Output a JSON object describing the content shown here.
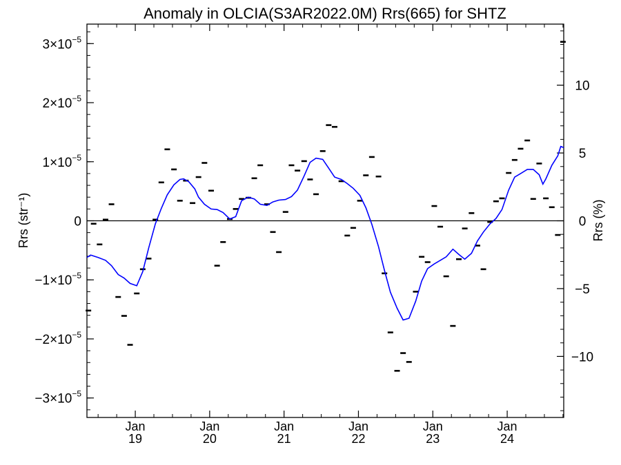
{
  "chart_data": {
    "type": "line",
    "title": "Anomaly in OLCIA(S3AR2022.0M) Rrs(665) for SHTZ",
    "ylabel_left": "Rrs (str⁻¹)",
    "ylabel_right": "Rrs (%)",
    "xlim": [
      2018.35,
      2024.76
    ],
    "ylim_left": [
      -3.33e-05,
      3.33e-05
    ],
    "ylim_right": [
      -14.5,
      14.5
    ],
    "left_ticks": [
      {
        "value": 3e-05,
        "mantissa": "3×10",
        "exp": "−5"
      },
      {
        "value": 2e-05,
        "mantissa": "2×10",
        "exp": "−5"
      },
      {
        "value": 1e-05,
        "mantissa": "1×10",
        "exp": "−5"
      },
      {
        "value": 0,
        "mantissa": "0",
        "exp": ""
      },
      {
        "value": -1e-05,
        "mantissa": "−1×10",
        "exp": "−5"
      },
      {
        "value": -2e-05,
        "mantissa": "−2×10",
        "exp": "−5"
      },
      {
        "value": -3e-05,
        "mantissa": "−3×10",
        "exp": "−5"
      }
    ],
    "right_ticks": [
      {
        "value": 10,
        "label": "10"
      },
      {
        "value": 5,
        "label": "5"
      },
      {
        "value": 0,
        "label": "0"
      },
      {
        "value": -5,
        "label": "−5"
      },
      {
        "value": -10,
        "label": "−10"
      }
    ],
    "x_ticks": [
      {
        "value": 2019.0,
        "month": "Jan",
        "year": "19"
      },
      {
        "value": 2020.0,
        "month": "Jan",
        "year": "20"
      },
      {
        "value": 2021.0,
        "month": "Jan",
        "year": "21"
      },
      {
        "value": 2022.0,
        "month": "Jan",
        "year": "22"
      },
      {
        "value": 2023.0,
        "month": "Jan",
        "year": "23"
      },
      {
        "value": 2024.0,
        "month": "Jan",
        "year": "24"
      }
    ],
    "reference_line": 0,
    "monthly_anomaly": [
      [
        2018.37,
        -1.52e-05
      ],
      [
        2018.44,
        -5e-07
      ],
      [
        2018.52,
        -4e-06
      ],
      [
        2018.6,
        2e-07
      ],
      [
        2018.68,
        2.8e-06
      ],
      [
        2018.77,
        -1.29e-05
      ],
      [
        2018.85,
        -1.61e-05
      ],
      [
        2018.93,
        -2.1e-05
      ],
      [
        2019.02,
        -1.23e-05
      ],
      [
        2019.1,
        -8.2e-06
      ],
      [
        2019.18,
        -6.4e-06
      ],
      [
        2019.27,
        2e-07
      ],
      [
        2019.35,
        6.5e-06
      ],
      [
        2019.43,
        1.21e-05
      ],
      [
        2019.52,
        8.7e-06
      ],
      [
        2019.6,
        3.4e-06
      ],
      [
        2019.68,
        6.8e-06
      ],
      [
        2019.77,
        3e-06
      ],
      [
        2019.85,
        7.4e-06
      ],
      [
        2019.93,
        9.8e-06
      ],
      [
        2020.02,
        5.1e-06
      ],
      [
        2020.1,
        -7.6e-06
      ],
      [
        2020.18,
        -3.6e-06
      ],
      [
        2020.27,
        3e-07
      ],
      [
        2020.35,
        2e-06
      ],
      [
        2020.43,
        3.7e-06
      ],
      [
        2020.52,
        3.9e-06
      ],
      [
        2020.6,
        7.2e-06
      ],
      [
        2020.68,
        9.4e-06
      ],
      [
        2020.77,
        2.8e-06
      ],
      [
        2020.85,
        -1.9e-06
      ],
      [
        2020.93,
        -5.3e-06
      ],
      [
        2021.02,
        1.5e-06
      ],
      [
        2021.1,
        9.4e-06
      ],
      [
        2021.18,
        8.5e-06
      ],
      [
        2021.27,
        1.01e-05
      ],
      [
        2021.35,
        7e-06
      ],
      [
        2021.43,
        4.5e-06
      ],
      [
        2021.52,
        1.18e-05
      ],
      [
        2021.6,
        1.62e-05
      ],
      [
        2021.68,
        1.59e-05
      ],
      [
        2021.77,
        6.7e-06
      ],
      [
        2021.85,
        -2.5e-06
      ],
      [
        2021.93,
        -1.2e-06
      ],
      [
        2022.02,
        3.4e-06
      ],
      [
        2022.1,
        7.7e-06
      ],
      [
        2022.18,
        1.08e-05
      ],
      [
        2022.27,
        7.5e-06
      ],
      [
        2022.35,
        -8.9e-06
      ],
      [
        2022.43,
        -1.89e-05
      ],
      [
        2022.52,
        -2.54e-05
      ],
      [
        2022.6,
        -2.24e-05
      ],
      [
        2022.68,
        -2.39e-05
      ],
      [
        2022.77,
        -1.2e-05
      ],
      [
        2022.85,
        -6.1e-06
      ],
      [
        2022.93,
        -7e-06
      ],
      [
        2023.02,
        2.5e-06
      ],
      [
        2023.1,
        -1e-06
      ],
      [
        2023.18,
        -9.4e-06
      ],
      [
        2023.27,
        -1.78e-05
      ],
      [
        2023.35,
        -6.5e-06
      ],
      [
        2023.43,
        -1.3e-06
      ],
      [
        2023.52,
        1.3e-06
      ],
      [
        2023.6,
        -4.2e-06
      ],
      [
        2023.68,
        -8.2e-06
      ],
      [
        2023.77,
        -2e-07
      ],
      [
        2023.85,
        3.3e-06
      ],
      [
        2023.93,
        3.8e-06
      ],
      [
        2024.02,
        8.1e-06
      ],
      [
        2024.1,
        1.03e-05
      ],
      [
        2024.18,
        1.22e-05
      ],
      [
        2024.27,
        1.36e-05
      ],
      [
        2024.35,
        3.7e-06
      ],
      [
        2024.43,
        9.7e-06
      ],
      [
        2024.52,
        3.8e-06
      ],
      [
        2024.6,
        2.3e-06
      ],
      [
        2024.68,
        -2.4e-06
      ],
      [
        2024.75,
        3.03e-05
      ]
    ],
    "running_mean": [
      [
        2018.35,
        -6.2e-06
      ],
      [
        2018.4,
        -5.8e-06
      ],
      [
        2018.5,
        -6.2e-06
      ],
      [
        2018.6,
        -6.7e-06
      ],
      [
        2018.68,
        -7.6e-06
      ],
      [
        2018.77,
        -9.1e-06
      ],
      [
        2018.85,
        -9.7e-06
      ],
      [
        2018.93,
        -1.06e-05
      ],
      [
        2019.02,
        -1.1e-05
      ],
      [
        2019.1,
        -8.6e-06
      ],
      [
        2019.18,
        -4.6e-06
      ],
      [
        2019.27,
        -5e-07
      ],
      [
        2019.35,
        2.1e-06
      ],
      [
        2019.43,
        4.4e-06
      ],
      [
        2019.52,
        6.1e-06
      ],
      [
        2019.6,
        7e-06
      ],
      [
        2019.65,
        7.1e-06
      ],
      [
        2019.72,
        6.6e-06
      ],
      [
        2019.8,
        5.4e-06
      ],
      [
        2019.85,
        4e-06
      ],
      [
        2019.93,
        2.8e-06
      ],
      [
        2020.02,
        2e-06
      ],
      [
        2020.1,
        1.9e-06
      ],
      [
        2020.18,
        1.4e-06
      ],
      [
        2020.27,
        3e-07
      ],
      [
        2020.35,
        7e-07
      ],
      [
        2020.43,
        3.4e-06
      ],
      [
        2020.52,
        4e-06
      ],
      [
        2020.6,
        3.7e-06
      ],
      [
        2020.68,
        2.8e-06
      ],
      [
        2020.77,
        2.6e-06
      ],
      [
        2020.85,
        3.2e-06
      ],
      [
        2020.93,
        3.5e-06
      ],
      [
        2021.02,
        3.6e-06
      ],
      [
        2021.1,
        4.1e-06
      ],
      [
        2021.18,
        5.2e-06
      ],
      [
        2021.27,
        7.6e-06
      ],
      [
        2021.35,
        9.9e-06
      ],
      [
        2021.43,
        1.06e-05
      ],
      [
        2021.52,
        1.04e-05
      ],
      [
        2021.6,
        8.9e-06
      ],
      [
        2021.68,
        7.4e-06
      ],
      [
        2021.77,
        7e-06
      ],
      [
        2021.85,
        6.3e-06
      ],
      [
        2021.93,
        5.5e-06
      ],
      [
        2022.02,
        4.3e-06
      ],
      [
        2022.1,
        2.2e-06
      ],
      [
        2022.18,
        -6e-07
      ],
      [
        2022.27,
        -4.4e-06
      ],
      [
        2022.35,
        -8.4e-06
      ],
      [
        2022.43,
        -1.21e-05
      ],
      [
        2022.52,
        -1.48e-05
      ],
      [
        2022.6,
        -1.68e-05
      ],
      [
        2022.68,
        -1.65e-05
      ],
      [
        2022.77,
        -1.36e-05
      ],
      [
        2022.85,
        -1.02e-05
      ],
      [
        2022.93,
        -8.1e-06
      ],
      [
        2023.02,
        -7.3e-06
      ],
      [
        2023.1,
        -6.7e-06
      ],
      [
        2023.18,
        -6.1e-06
      ],
      [
        2023.27,
        -4.8e-06
      ],
      [
        2023.35,
        -5.7e-06
      ],
      [
        2023.43,
        -6.5e-06
      ],
      [
        2023.52,
        -5.5e-06
      ],
      [
        2023.6,
        -3.4e-06
      ],
      [
        2023.68,
        -1.9e-06
      ],
      [
        2023.77,
        -5e-07
      ],
      [
        2023.85,
        4e-07
      ],
      [
        2023.93,
        1.9e-06
      ],
      [
        2024.02,
        5.2e-06
      ],
      [
        2024.1,
        7.4e-06
      ],
      [
        2024.18,
        8e-06
      ],
      [
        2024.27,
        8.7e-06
      ],
      [
        2024.35,
        8.7e-06
      ],
      [
        2024.43,
        7.8e-06
      ],
      [
        2024.48,
        6.2e-06
      ],
      [
        2024.52,
        7.1e-06
      ],
      [
        2024.6,
        9.4e-06
      ],
      [
        2024.68,
        1.1e-05
      ],
      [
        2024.72,
        1.26e-05
      ],
      [
        2024.76,
        1.24e-05
      ]
    ],
    "colors": {
      "running_mean": "#0000ff",
      "markers": "#000000",
      "axes": "#000000"
    }
  }
}
